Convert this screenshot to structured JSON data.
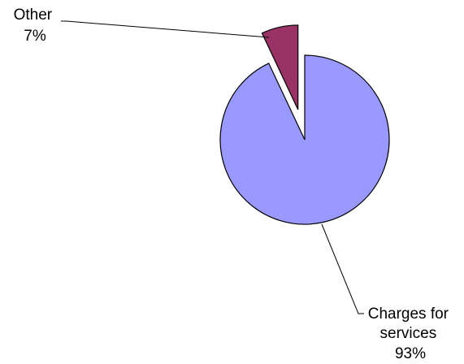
{
  "chart_data": {
    "type": "pie",
    "title": "",
    "legend": "none",
    "exploded_slice": "Other",
    "slices": [
      {
        "name": "Other",
        "value": 7,
        "label_lines": [
          "Other",
          "7%"
        ],
        "color": "#993366"
      },
      {
        "name": "Charges for services",
        "value": 93,
        "label_lines": [
          "Charges for",
          "services",
          "93%"
        ],
        "color": "#9999ff"
      }
    ]
  }
}
